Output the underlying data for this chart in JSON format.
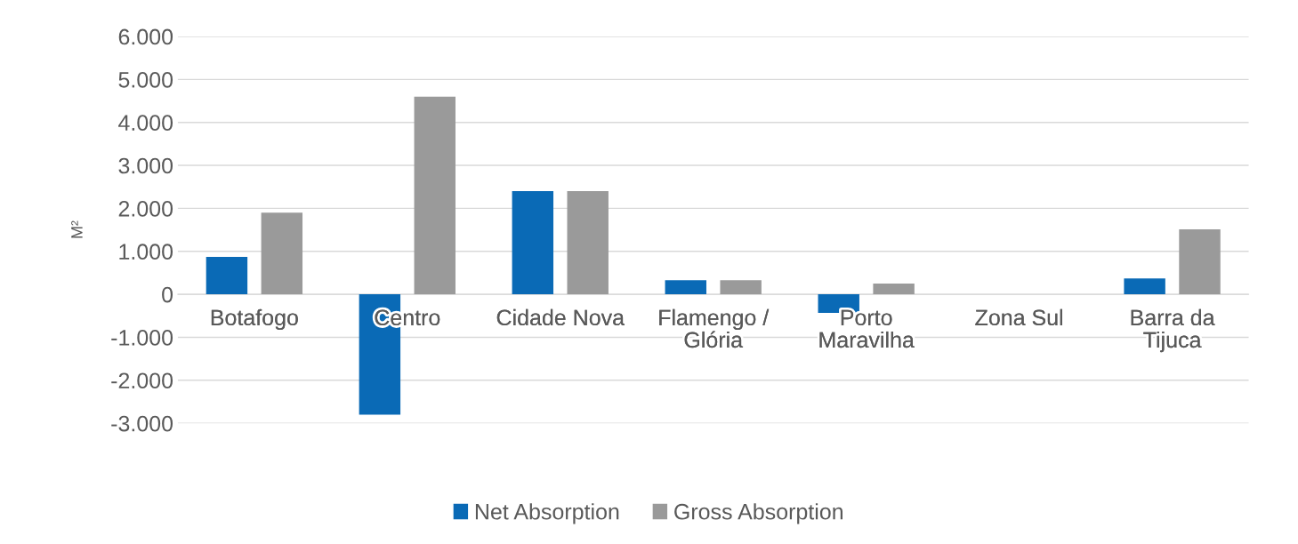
{
  "chart_data": {
    "type": "bar",
    "ylabel": "M²",
    "categories": [
      "Botafogo",
      "Centro",
      "Cidade Nova",
      "Flamengo /\nGlória",
      "Porto\nMaravilha",
      "Zona Sul",
      "Barra da\nTijuca"
    ],
    "series": [
      {
        "name": "Net Absorption",
        "color": "#0a6ab6",
        "values": [
          870,
          -2800,
          2400,
          330,
          -430,
          0,
          370
        ]
      },
      {
        "name": "Gross Absorption",
        "color": "#9a9a9a",
        "values": [
          1900,
          4600,
          2400,
          330,
          250,
          0,
          1510
        ]
      }
    ],
    "ylim": [
      -3000,
      6000
    ],
    "yticks": [
      {
        "value": -3000,
        "label": "-3.000"
      },
      {
        "value": -2000,
        "label": "-2.000"
      },
      {
        "value": -1000,
        "label": "-1.000"
      },
      {
        "value": 0,
        "label": "0"
      },
      {
        "value": 1000,
        "label": "1.000"
      },
      {
        "value": 2000,
        "label": "2.000"
      },
      {
        "value": 3000,
        "label": "3.000"
      },
      {
        "value": 4000,
        "label": "4.000"
      },
      {
        "value": 5000,
        "label": "5.000"
      },
      {
        "value": 6000,
        "label": "6.000"
      }
    ],
    "grid": "y",
    "legend": "bottom"
  }
}
